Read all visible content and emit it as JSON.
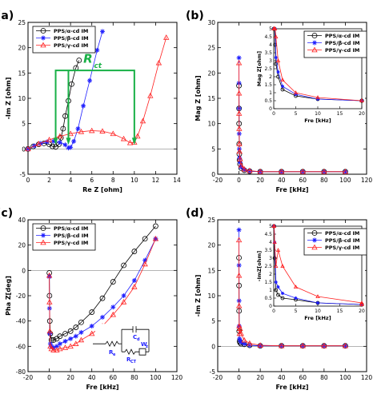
{
  "chart_data": [
    {
      "panel_label": "(a)",
      "type": "line",
      "xlabel": "Re Z [ohm]",
      "ylabel": "-Im Z [ohm]",
      "xlim": [
        0,
        14
      ],
      "ylim": [
        -5,
        25
      ],
      "xticks": [
        0,
        2,
        4,
        6,
        8,
        10,
        12,
        14
      ],
      "yticks": [
        -5,
        0,
        5,
        10,
        15,
        20,
        25
      ],
      "legend_position": "top-left",
      "annotation": "R",
      "annotation_sub": "ct",
      "series": [
        {
          "name": "PPS/α-cd IM",
          "color": "#000000",
          "marker": "circle",
          "x": [
            0,
            0.5,
            1,
            1.5,
            2,
            2.3,
            2.6,
            2.9,
            3.1,
            3.3,
            3.5,
            3.8,
            4.1,
            4.5,
            4.8
          ],
          "y": [
            0,
            0.5,
            0.9,
            1.1,
            0.9,
            0.5,
            0.4,
            0.9,
            2.2,
            4.0,
            6.5,
            9.5,
            12.8,
            16.0,
            17.5
          ]
        },
        {
          "name": "PPS/β-cd IM",
          "color": "#2020ff",
          "marker": "star",
          "x": [
            0,
            0.6,
            1.2,
            1.8,
            2.4,
            3.0,
            3.5,
            3.8,
            4.0,
            4.3,
            4.7,
            5.2,
            5.8,
            6.5,
            7.0
          ],
          "y": [
            0,
            0.6,
            1.1,
            1.4,
            1.5,
            1.3,
            0.8,
            0.2,
            0.3,
            1.5,
            4.0,
            8.5,
            13.5,
            19.5,
            23.2
          ]
        },
        {
          "name": "PPS/γ-cd IM",
          "color": "#ff2020",
          "marker": "triangle",
          "x": [
            0,
            1,
            2,
            3,
            4,
            5,
            6,
            7,
            8,
            9,
            9.6,
            10,
            10.3,
            10.8,
            11.5,
            12.3,
            13.0
          ],
          "y": [
            0,
            1.0,
            1.8,
            2.5,
            3.0,
            3.4,
            3.6,
            3.5,
            3.0,
            2.0,
            1.2,
            1.3,
            2.5,
            5.5,
            10.5,
            17.0,
            22.0
          ]
        }
      ]
    },
    {
      "panel_label": "(b)",
      "type": "line",
      "xlabel": "Fre [kHz]",
      "ylabel": "Mag Z [ohm]",
      "xlim": [
        -20,
        120
      ],
      "ylim": [
        0,
        30
      ],
      "xticks": [
        -20,
        0,
        20,
        40,
        60,
        80,
        100,
        120
      ],
      "yticks": [
        0,
        5,
        10,
        15,
        20,
        25,
        30
      ],
      "series": [
        {
          "name": "PPS/α-cd IM",
          "color": "#000000",
          "marker": "circle",
          "x": [
            0.01,
            0.05,
            0.1,
            0.2,
            0.3,
            0.5,
            1,
            2,
            5,
            10,
            20,
            40,
            60,
            80,
            100
          ],
          "y": [
            17.5,
            13,
            10,
            6,
            4,
            2.8,
            2.0,
            1.2,
            0.8,
            0.6,
            0.5,
            0.5,
            0.5,
            0.5,
            0.5
          ]
        },
        {
          "name": "PPS/β-cd IM",
          "color": "#2020ff",
          "marker": "star",
          "x": [
            0.01,
            0.05,
            0.1,
            0.2,
            0.3,
            0.5,
            1,
            2,
            5,
            10,
            20,
            40,
            60,
            80,
            100
          ],
          "y": [
            23,
            18,
            13,
            8,
            5,
            3.2,
            2.3,
            1.4,
            0.9,
            0.6,
            0.5,
            0.5,
            0.5,
            0.5,
            0.5
          ]
        },
        {
          "name": "PPS/γ-cd IM",
          "color": "#ff2020",
          "marker": "triangle",
          "x": [
            0.01,
            0.05,
            0.1,
            0.2,
            0.3,
            0.5,
            1,
            2,
            5,
            10,
            20,
            40,
            60,
            80,
            100
          ],
          "y": [
            22,
            16,
            12,
            9,
            6,
            4.5,
            3.0,
            1.8,
            1.0,
            0.7,
            0.5,
            0.5,
            0.5,
            0.5,
            0.5
          ]
        }
      ],
      "inset": {
        "xlabel": "Fre [kHz]",
        "ylabel": "Mag Z[ohm]",
        "xlim": [
          0,
          20
        ],
        "ylim": [
          0,
          5
        ],
        "xticks": [
          0,
          5,
          10,
          15,
          20
        ],
        "yticks": [
          0,
          0.5,
          1,
          1.5,
          2,
          2.5,
          3,
          3.5,
          4,
          4.5,
          5
        ],
        "legend_position": "top-right"
      }
    },
    {
      "panel_label": "(c)",
      "type": "line",
      "xlabel": "Fre [kHz]",
      "ylabel": "Pha Z[deg]",
      "xlim": [
        -20,
        120
      ],
      "ylim": [
        -80,
        40
      ],
      "xticks": [
        -20,
        0,
        20,
        40,
        60,
        80,
        100,
        120
      ],
      "yticks": [
        -80,
        -60,
        -40,
        -20,
        0,
        20,
        40
      ],
      "legend_position": "top-left",
      "circuit_labels": {
        "re": "R",
        "re_sub": "e",
        "rct": "R",
        "rct_sub": "CT",
        "cd": "C",
        "cd_sub": "d",
        "wz": "W",
        "wz_sub": "z"
      },
      "series": [
        {
          "name": "PPS/α-cd IM",
          "color": "#000000",
          "marker": "circle",
          "x": [
            0.05,
            0.2,
            0.5,
            1,
            2,
            4,
            7,
            10,
            15,
            20,
            25,
            30,
            40,
            50,
            60,
            70,
            80,
            90,
            100
          ],
          "y": [
            -2,
            -20,
            -40,
            -50,
            -55,
            -55,
            -54,
            -52,
            -50,
            -48,
            -45,
            -41,
            -33,
            -22,
            -9,
            4,
            15,
            25,
            35
          ]
        },
        {
          "name": "PPS/β-cd IM",
          "color": "#2020ff",
          "marker": "star",
          "x": [
            0.05,
            0.2,
            0.5,
            1,
            2,
            4,
            7,
            10,
            15,
            20,
            25,
            30,
            40,
            50,
            60,
            70,
            80,
            90,
            100
          ],
          "y": [
            -5,
            -30,
            -50,
            -58,
            -60,
            -61,
            -60,
            -58,
            -56,
            -54,
            -52,
            -49,
            -44,
            -37,
            -29,
            -20,
            -8,
            8,
            25
          ]
        },
        {
          "name": "PPS/γ-cd IM",
          "color": "#ff2020",
          "marker": "triangle",
          "x": [
            0.05,
            0.2,
            0.5,
            1,
            2,
            4,
            7,
            10,
            15,
            20,
            25,
            30,
            40,
            50,
            60,
            70,
            80,
            90,
            100
          ],
          "y": [
            -4,
            -25,
            -48,
            -60,
            -62,
            -63,
            -63,
            -62,
            -61,
            -60,
            -58,
            -55,
            -50,
            -44,
            -35,
            -25,
            -13,
            5,
            25
          ]
        }
      ]
    },
    {
      "panel_label": "(d)",
      "type": "line",
      "xlabel": "Fre [kHz]",
      "ylabel": "-Im Z [ohm]",
      "xlim": [
        -20,
        120
      ],
      "ylim": [
        -5,
        25
      ],
      "xticks": [
        -20,
        0,
        20,
        40,
        60,
        80,
        100,
        120
      ],
      "yticks": [
        -5,
        0,
        5,
        10,
        15,
        20,
        25
      ],
      "series": [
        {
          "name": "PPS/α-cd IM",
          "color": "#000000",
          "marker": "circle",
          "x": [
            0.01,
            0.05,
            0.1,
            0.2,
            0.5,
            1,
            2,
            5,
            10,
            20,
            40,
            60,
            80,
            100
          ],
          "y": [
            17.5,
            12,
            7,
            3,
            1.0,
            0.7,
            0.5,
            0.4,
            0.2,
            0.1,
            0.1,
            0.1,
            0.1,
            0.1
          ]
        },
        {
          "name": "PPS/β-cd IM",
          "color": "#2020ff",
          "marker": "star",
          "x": [
            0.01,
            0.05,
            0.1,
            0.2,
            0.5,
            1,
            2,
            5,
            10,
            20,
            40,
            60,
            80,
            100
          ],
          "y": [
            23,
            16,
            9,
            4,
            1.5,
            1.2,
            0.8,
            0.5,
            0.2,
            0.1,
            0.1,
            0.1,
            0.1,
            0.1
          ]
        },
        {
          "name": "PPS/γ-cd IM",
          "color": "#ff2020",
          "marker": "triangle",
          "x": [
            0.01,
            0.05,
            0.1,
            0.2,
            0.5,
            1,
            2,
            5,
            10,
            20,
            40,
            60,
            80,
            100
          ],
          "y": [
            21,
            14,
            8,
            4,
            2.5,
            3.5,
            2.5,
            1.2,
            0.6,
            0.2,
            0.1,
            0.1,
            0.1,
            0.1
          ]
        }
      ],
      "inset": {
        "xlabel": "Fre [kHz]",
        "ylabel": "-ImZ[ohm]",
        "xlim": [
          0,
          20
        ],
        "ylim": [
          0,
          5
        ],
        "xticks": [
          0,
          5,
          10,
          15,
          20
        ],
        "yticks": [
          0,
          0.5,
          1,
          1.5,
          2,
          2.5,
          3,
          3.5,
          4,
          4.5,
          5
        ],
        "legend_position": "top-right"
      }
    }
  ]
}
